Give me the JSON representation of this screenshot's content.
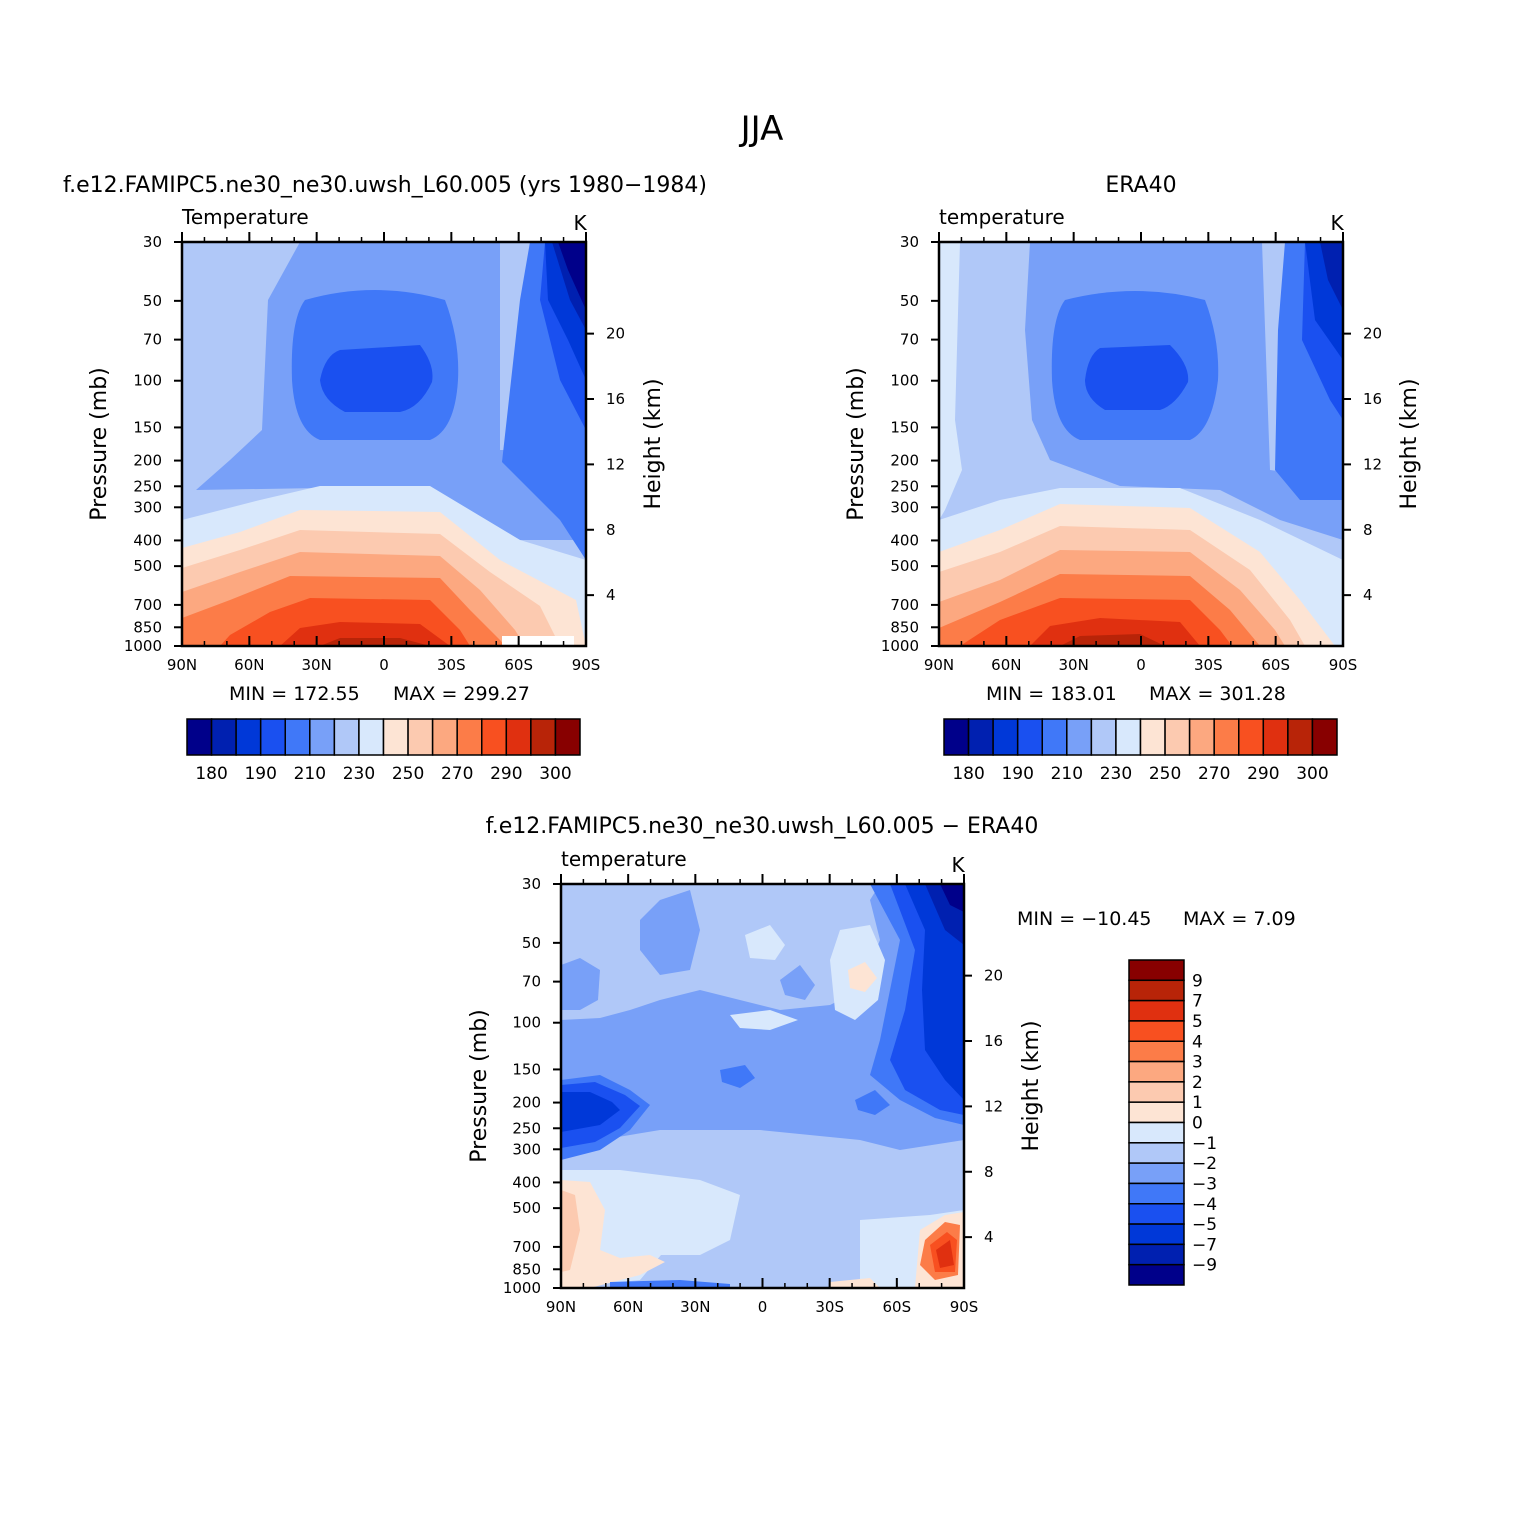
{
  "figure": {
    "main_title": "JJA"
  },
  "chart_data": [
    {
      "type": "heatmap",
      "panel": "model",
      "header": "f.e12.FAMIPC5.ne30_ne30.uwsh_L60.005 (yrs 1980−1984)",
      "subtitle_left": "Temperature",
      "units": "K",
      "ylabel": "Pressure (mb)",
      "ylabel_right": "Height (km)",
      "x_ticks": [
        "90N",
        "60N",
        "30N",
        "0",
        "30S",
        "60S",
        "90S"
      ],
      "y_ticks": [
        "30",
        "50",
        "70",
        "100",
        "150",
        "200",
        "250",
        "300",
        "400",
        "500",
        "700",
        "850",
        "1000"
      ],
      "height_ticks": [
        "20",
        "16",
        "12",
        "8",
        "4"
      ],
      "min_label": "MIN = 172.55",
      "max_label": "MAX = 299.27",
      "min": 172.55,
      "max": 299.27
    },
    {
      "type": "heatmap",
      "panel": "obs",
      "header": "ERA40",
      "subtitle_left": "temperature",
      "units": "K",
      "ylabel": "Pressure (mb)",
      "ylabel_right": "Height (km)",
      "x_ticks": [
        "90N",
        "60N",
        "30N",
        "0",
        "30S",
        "60S",
        "90S"
      ],
      "y_ticks": [
        "30",
        "50",
        "70",
        "100",
        "150",
        "200",
        "250",
        "300",
        "400",
        "500",
        "700",
        "850",
        "1000"
      ],
      "height_ticks": [
        "20",
        "16",
        "12",
        "8",
        "4"
      ],
      "min_label": "MIN = 183.01",
      "max_label": "MAX = 301.28",
      "min": 183.01,
      "max": 301.28
    },
    {
      "type": "heatmap",
      "panel": "diff",
      "header": "f.e12.FAMIPC5.ne30_ne30.uwsh_L60.005 − ERA40",
      "subtitle_left": "temperature",
      "units": "K",
      "ylabel": "Pressure (mb)",
      "ylabel_right": "Height (km)",
      "x_ticks": [
        "90N",
        "60N",
        "30N",
        "0",
        "30S",
        "60S",
        "90S"
      ],
      "y_ticks": [
        "30",
        "50",
        "70",
        "100",
        "150",
        "200",
        "250",
        "300",
        "400",
        "500",
        "700",
        "850",
        "1000"
      ],
      "height_ticks": [
        "20",
        "16",
        "12",
        "8",
        "4"
      ],
      "min_label": "MIN = −10.45",
      "max_label": "MAX = 7.09",
      "min": -10.45,
      "max": 7.09
    }
  ],
  "colorbar_abs": {
    "colors": [
      "#00008a",
      "#0020b0",
      "#0038d8",
      "#1a50f0",
      "#4078f8",
      "#78a0f8",
      "#b0c8f8",
      "#d8e8fc",
      "#fde4d4",
      "#fccab0",
      "#fca880",
      "#fc7c48",
      "#f85020",
      "#e03010",
      "#b82408",
      "#880000"
    ],
    "labels": [
      "180",
      "190",
      "210",
      "230",
      "250",
      "270",
      "290",
      "300"
    ]
  },
  "colorbar_diff": {
    "colors": [
      "#880000",
      "#b82408",
      "#e03010",
      "#f85020",
      "#fc7c48",
      "#fca880",
      "#fccab0",
      "#fde4d4",
      "#d8e8fc",
      "#b0c8f8",
      "#78a0f8",
      "#4078f8",
      "#1a50f0",
      "#0038d8",
      "#0020b0",
      "#00008a"
    ],
    "labels": [
      "9",
      "7",
      "5",
      "4",
      "3",
      "2",
      "1",
      "0",
      "−1",
      "−2",
      "−3",
      "−4",
      "−5",
      "−7",
      "−9"
    ]
  }
}
